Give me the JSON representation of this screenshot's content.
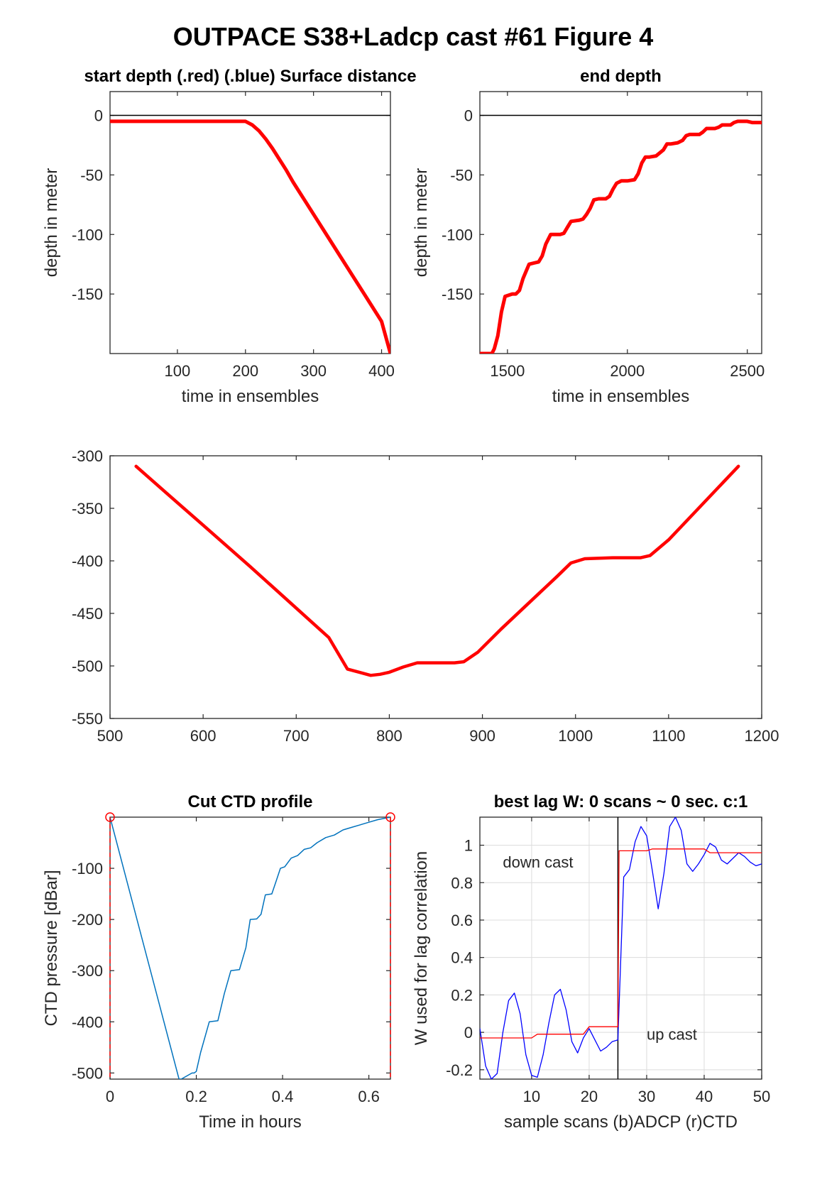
{
  "figure_title": "OUTPACE S38+Ladcp cast #61   Figure 4",
  "chart_data": [
    {
      "id": "start-depth",
      "type": "line",
      "title": "start depth (.red) (.blue) Surface distance",
      "xlabel": "time in ensembles",
      "ylabel": "depth in meter",
      "xlim": [
        1,
        413
      ],
      "ylim": [
        -200,
        20
      ],
      "xticks": [
        100,
        200,
        300,
        400
      ],
      "yticks": [
        0,
        -50,
        -100,
        -150
      ],
      "grid": false,
      "reference_line": 0,
      "series": [
        {
          "color": "#ff0000",
          "x": [
            1,
            50,
            100,
            150,
            200,
            210,
            220,
            230,
            240,
            250,
            260,
            270,
            280,
            290,
            300,
            320,
            340,
            360,
            380,
            400,
            413
          ],
          "y": [
            -5,
            -5,
            -5,
            -5,
            -5,
            -8,
            -13,
            -20,
            -28,
            -37,
            -46,
            -56,
            -65,
            -74,
            -83,
            -101,
            -119,
            -137,
            -155,
            -173,
            -200
          ]
        }
      ]
    },
    {
      "id": "end-depth",
      "type": "line",
      "title": "end depth",
      "xlabel": "time in ensembles",
      "ylabel": "depth in meter",
      "xlim": [
        1385,
        2560
      ],
      "ylim": [
        -200,
        20
      ],
      "xticks": [
        1500,
        2000,
        2500
      ],
      "yticks": [
        0,
        -50,
        -100,
        -150
      ],
      "grid": false,
      "reference_line": 0,
      "series": [
        {
          "color": "#ff0000",
          "x": [
            1385,
            1435,
            1445,
            1460,
            1475,
            1490,
            1520,
            1535,
            1550,
            1565,
            1590,
            1610,
            1630,
            1645,
            1660,
            1680,
            1720,
            1735,
            1750,
            1765,
            1800,
            1815,
            1830,
            1845,
            1860,
            1880,
            1910,
            1925,
            1940,
            1955,
            1975,
            2000,
            2030,
            2045,
            2060,
            2075,
            2090,
            2120,
            2150,
            2165,
            2180,
            2210,
            2230,
            2245,
            2260,
            2300,
            2315,
            2330,
            2365,
            2380,
            2395,
            2430,
            2445,
            2460,
            2500,
            2520,
            2560
          ],
          "y": [
            -200,
            -200,
            -196,
            -185,
            -165,
            -152,
            -150,
            -150,
            -147,
            -137,
            -125,
            -124,
            -123,
            -118,
            -108,
            -100,
            -100,
            -99,
            -94,
            -89,
            -88,
            -87,
            -83,
            -78,
            -71,
            -70,
            -70,
            -68,
            -62,
            -57,
            -55,
            -55,
            -54,
            -49,
            -40,
            -35,
            -35,
            -34,
            -29,
            -24,
            -24,
            -23,
            -21,
            -17,
            -16,
            -16,
            -14,
            -11,
            -11,
            -10,
            -8,
            -8,
            -6,
            -5,
            -5,
            -6,
            -6
          ]
        }
      ]
    },
    {
      "id": "surface-distance",
      "type": "line",
      "title": "",
      "xlabel": "",
      "ylabel": "",
      "xlim": [
        500,
        1200
      ],
      "ylim": [
        -550,
        -300
      ],
      "xticks": [
        500,
        600,
        700,
        800,
        900,
        1000,
        1100,
        1200
      ],
      "yticks": [
        -300,
        -350,
        -400,
        -450,
        -500,
        -550
      ],
      "grid": false,
      "series": [
        {
          "color": "#ff0000",
          "x": [
            528,
            560,
            600,
            650,
            700,
            735,
            755,
            780,
            790,
            800,
            815,
            830,
            850,
            870,
            880,
            895,
            920,
            950,
            980,
            995,
            1010,
            1040,
            1070,
            1080,
            1100,
            1130,
            1175
          ],
          "y": [
            -310,
            -335,
            -366,
            -405,
            -445,
            -473,
            -503,
            -509,
            -508,
            -506,
            -501,
            -497,
            -497,
            -497,
            -496,
            -487,
            -465,
            -440,
            -415,
            -402,
            -398,
            -397,
            -397,
            -395,
            -380,
            -352,
            -310
          ]
        }
      ]
    },
    {
      "id": "cut-ctd-profile",
      "type": "line",
      "title": "Cut CTD profile",
      "xlabel": "Time in hours",
      "ylabel": "CTD pressure [dBar]",
      "xlim": [
        0,
        0.65
      ],
      "ylim": [
        -512,
        0
      ],
      "xticks": [
        0,
        0.2,
        0.4,
        0.6
      ],
      "yticks": [
        -100,
        -200,
        -300,
        -400,
        -500
      ],
      "grid": false,
      "cut_markers": {
        "color": "#ff0000",
        "x": [
          0,
          0.65
        ],
        "y": [
          0,
          0
        ]
      },
      "series": [
        {
          "color": "#0072bd",
          "x": [
            0,
            0.16,
            0.165,
            0.19,
            0.195,
            0.2,
            0.21,
            0.23,
            0.25,
            0.265,
            0.28,
            0.29,
            0.3,
            0.315,
            0.325,
            0.34,
            0.35,
            0.36,
            0.375,
            0.385,
            0.395,
            0.405,
            0.42,
            0.435,
            0.45,
            0.465,
            0.48,
            0.5,
            0.52,
            0.54,
            0.56,
            0.58,
            0.6,
            0.62,
            0.65
          ],
          "y": [
            0,
            -512,
            -512,
            -500,
            -500,
            -497,
            -460,
            -400,
            -398,
            -345,
            -300,
            -299,
            -298,
            -255,
            -200,
            -199,
            -190,
            -152,
            -150,
            -125,
            -100,
            -97,
            -80,
            -75,
            -63,
            -60,
            -50,
            -40,
            -35,
            -25,
            -20,
            -15,
            -10,
            -5,
            0
          ]
        }
      ]
    },
    {
      "id": "best-lag",
      "type": "line",
      "title": "best lag W: 0 scans ~ 0 sec.  c:1",
      "xlabel": "sample scans (b)ADCP (r)CTD",
      "ylabel": "W used for lag correlation",
      "xlim": [
        1,
        50
      ],
      "ylim": [
        -0.25,
        1.15
      ],
      "xticks": [
        10,
        20,
        30,
        40,
        50
      ],
      "yticks": [
        1,
        0.8,
        0.6,
        0.4,
        0.2,
        0,
        -0.2
      ],
      "grid": true,
      "divider_x": 25,
      "annotations": [
        {
          "text": "down cast",
          "x": 5,
          "y": 0.88
        },
        {
          "text": "up cast",
          "x": 30,
          "y": -0.04
        }
      ],
      "series": [
        {
          "color": "#0000ff",
          "x": [
            1,
            2,
            3,
            4,
            5,
            6,
            7,
            8,
            9,
            10,
            11,
            12,
            13,
            14,
            15,
            16,
            17,
            18,
            19,
            20,
            21,
            22,
            23,
            24,
            25,
            26,
            27,
            28,
            29,
            30,
            31,
            32,
            33,
            34,
            35,
            36,
            37,
            38,
            39,
            40,
            41,
            42,
            43,
            44,
            45,
            46,
            47,
            48,
            49,
            50
          ],
          "y": [
            0.02,
            -0.18,
            -0.25,
            -0.22,
            0.0,
            0.17,
            0.21,
            0.1,
            -0.12,
            -0.23,
            -0.24,
            -0.12,
            0.05,
            0.2,
            0.23,
            0.12,
            -0.05,
            -0.11,
            -0.03,
            0.02,
            -0.04,
            -0.1,
            -0.08,
            -0.05,
            -0.04,
            0.83,
            0.87,
            1.02,
            1.1,
            1.05,
            0.86,
            0.66,
            0.85,
            1.1,
            1.15,
            1.08,
            0.9,
            0.86,
            0.9,
            0.95,
            1.01,
            0.99,
            0.92,
            0.9,
            0.93,
            0.96,
            0.94,
            0.91,
            0.89,
            0.9
          ]
        },
        {
          "color": "#ff0000",
          "x": [
            1,
            10,
            11,
            19,
            20,
            25,
            25.2,
            26,
            30,
            31,
            40,
            41,
            50
          ],
          "y": [
            -0.03,
            -0.03,
            -0.01,
            -0.01,
            0.03,
            0.03,
            0.97,
            0.97,
            0.97,
            0.98,
            0.98,
            0.96,
            0.96
          ]
        }
      ]
    }
  ]
}
